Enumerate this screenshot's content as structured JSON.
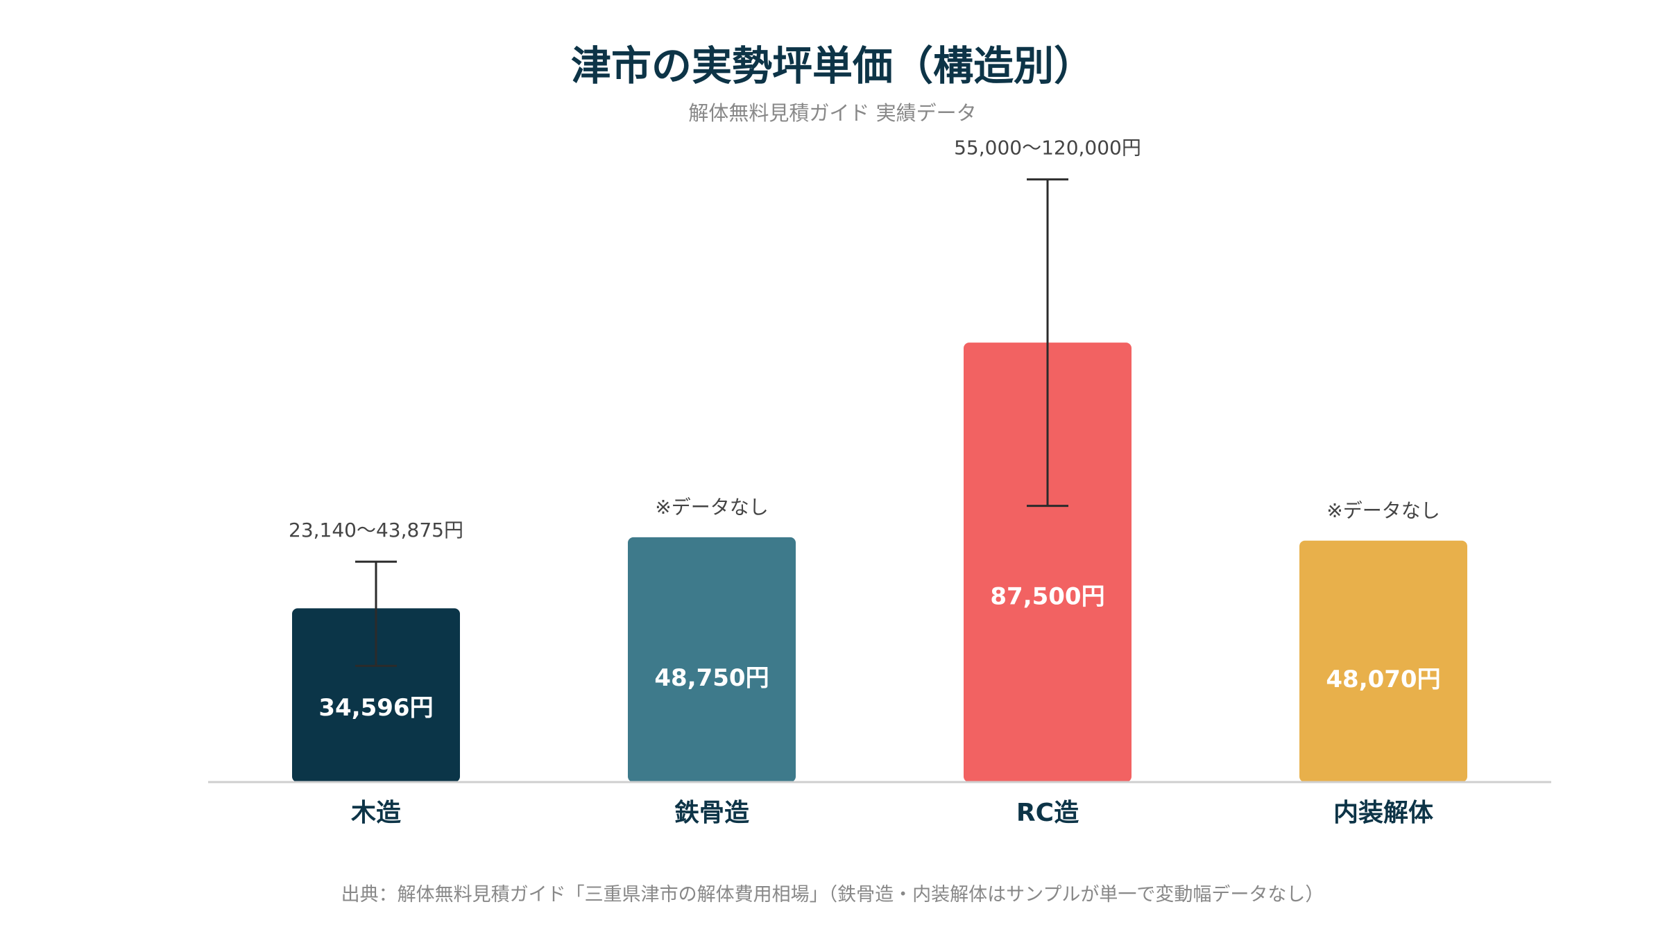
{
  "title": "津市の実勢坪単価（構造別）",
  "subtitle": "解体無料見積ガイド 実績データ",
  "source": "出典：解体無料見積ガイド「三重県津市の解体費用相場」（鉄骨造・内装解体はサンプルが単一で変動幅データなし）",
  "chart_data": {
    "type": "bar",
    "categories": [
      "木造",
      "鉄骨造",
      "RC造",
      "内装解体"
    ],
    "values": [
      34596,
      48750,
      87500,
      48070
    ],
    "value_labels": [
      "34,596円",
      "48,750円",
      "87,500円",
      "48,070円"
    ],
    "ranges": [
      {
        "low": 23140,
        "high": 43875
      },
      null,
      {
        "low": 55000,
        "high": 120000
      },
      null
    ],
    "range_labels": [
      "23,140〜43,875円",
      "※データなし",
      "55,000〜120,000円",
      "※データなし"
    ],
    "colors": [
      "#0b3548",
      "#3e7a8b",
      "#f26262",
      "#e8b04b"
    ],
    "ylim": [
      0,
      127000
    ],
    "grid": false,
    "legend": "none"
  }
}
